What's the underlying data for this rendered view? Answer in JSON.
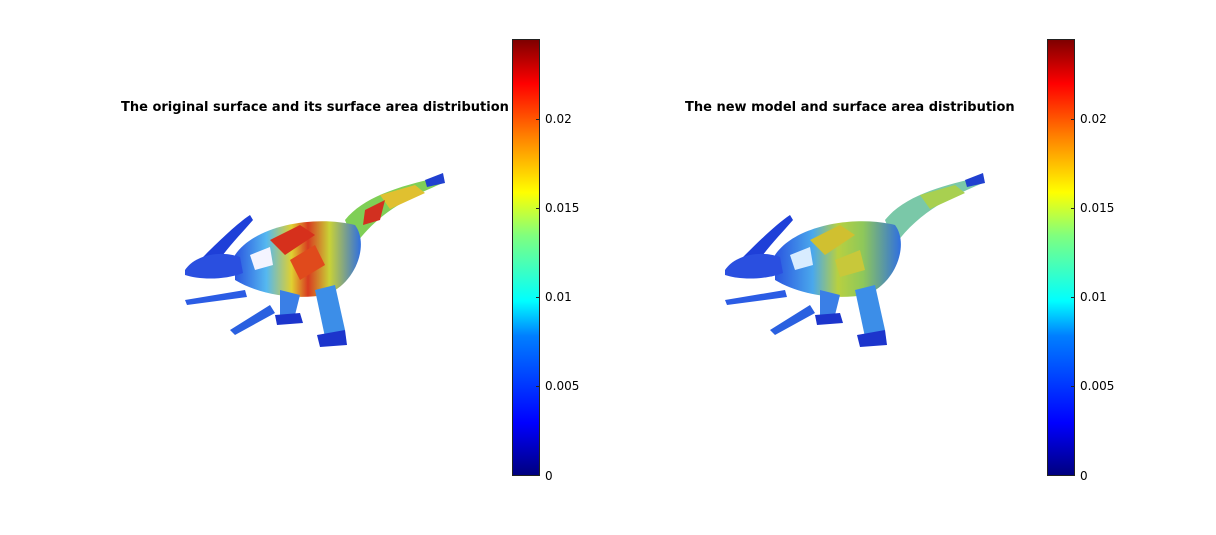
{
  "figure": {
    "panels": [
      {
        "title": "The original surface and its surface area distribution",
        "colorbar": {
          "range": [
            0,
            0.0245
          ],
          "ticks": [
            {
              "value": 0,
              "label": "0"
            },
            {
              "value": 0.005,
              "label": "0.005"
            },
            {
              "value": 0.01,
              "label": "0.01"
            },
            {
              "value": 0.015,
              "label": "0.015"
            },
            {
              "value": 0.02,
              "label": "0.02"
            }
          ],
          "colormap": "jet"
        },
        "mesh": "parasaurolophus-mesh",
        "dominant_colors": [
          "#1a3fd6",
          "#2fa0e0",
          "#e6c830",
          "#d8301c"
        ]
      },
      {
        "title": "The new model and surface area distribution",
        "colorbar": {
          "range": [
            0,
            0.0245
          ],
          "ticks": [
            {
              "value": 0,
              "label": "0"
            },
            {
              "value": 0.005,
              "label": "0.005"
            },
            {
              "value": 0.01,
              "label": "0.01"
            },
            {
              "value": 0.015,
              "label": "0.015"
            },
            {
              "value": 0.02,
              "label": "0.02"
            }
          ],
          "colormap": "jet"
        },
        "mesh": "parasaurolophus-mesh",
        "dominant_colors": [
          "#1a3fd6",
          "#2fa0e0",
          "#9ccf4a",
          "#d6c037"
        ]
      }
    ]
  }
}
